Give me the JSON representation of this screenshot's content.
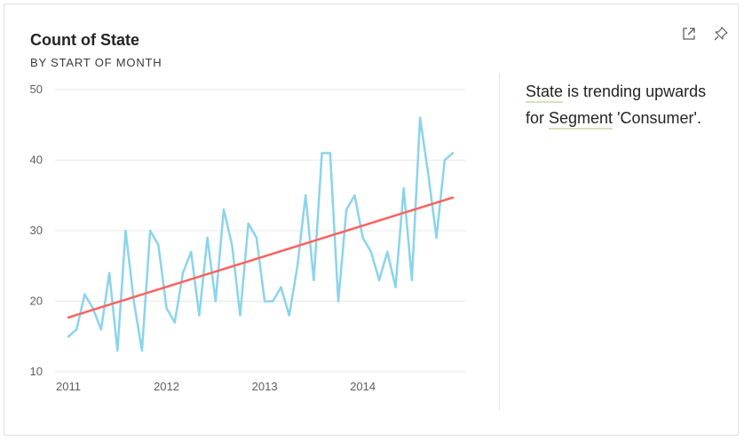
{
  "card": {
    "title": "Count of State",
    "subtitle": "BY START OF MONTH",
    "icons": [
      "expand-icon",
      "pin-icon"
    ]
  },
  "insight": {
    "field": "State",
    "text1": " is trending upwards for ",
    "segment_field": "Segment",
    "text2": " 'Consumer'."
  },
  "colors": {
    "series": "#8ad4eb",
    "trend": "#fd625e",
    "grid": "#e9e9e9",
    "highlight_underline": "#d6dfc0"
  },
  "chart_data": {
    "type": "line",
    "title": "Count of State",
    "subtitle": "BY START OF MONTH",
    "xlabel": "",
    "ylabel": "",
    "x": [
      "2011-01",
      "2011-02",
      "2011-03",
      "2011-04",
      "2011-05",
      "2011-06",
      "2011-07",
      "2011-08",
      "2011-09",
      "2011-10",
      "2011-11",
      "2011-12",
      "2012-01",
      "2012-02",
      "2012-03",
      "2012-04",
      "2012-05",
      "2012-06",
      "2012-07",
      "2012-08",
      "2012-09",
      "2012-10",
      "2012-11",
      "2012-12",
      "2013-01",
      "2013-02",
      "2013-03",
      "2013-04",
      "2013-05",
      "2013-06",
      "2013-07",
      "2013-08",
      "2013-09",
      "2013-10",
      "2013-11",
      "2013-12",
      "2014-01",
      "2014-02",
      "2014-03",
      "2014-04",
      "2014-05",
      "2014-06",
      "2014-07",
      "2014-08",
      "2014-09",
      "2014-10",
      "2014-11",
      "2014-12"
    ],
    "series": [
      {
        "values": [
          15,
          16,
          21,
          19,
          16,
          24,
          13,
          30,
          20,
          13,
          30,
          28,
          19,
          17,
          24,
          27,
          18,
          29,
          20,
          33,
          28,
          18,
          31,
          29,
          20,
          20,
          22,
          18,
          25,
          35,
          23,
          41,
          41,
          20,
          33,
          35,
          29,
          27,
          23,
          27,
          22,
          36,
          23,
          46,
          38,
          29,
          40,
          41
        ]
      },
      {
        "trend": "linear",
        "start": [
          "2011-01",
          17.7
        ],
        "end": [
          "2014-12",
          34.7
        ]
      }
    ],
    "x_ticks": [
      "2011",
      "2012",
      "2013",
      "2014"
    ],
    "y_ticks": [
      10,
      20,
      30,
      40,
      50
    ],
    "ylim": [
      10,
      50
    ],
    "grid": "horizontal",
    "legend": "none"
  }
}
